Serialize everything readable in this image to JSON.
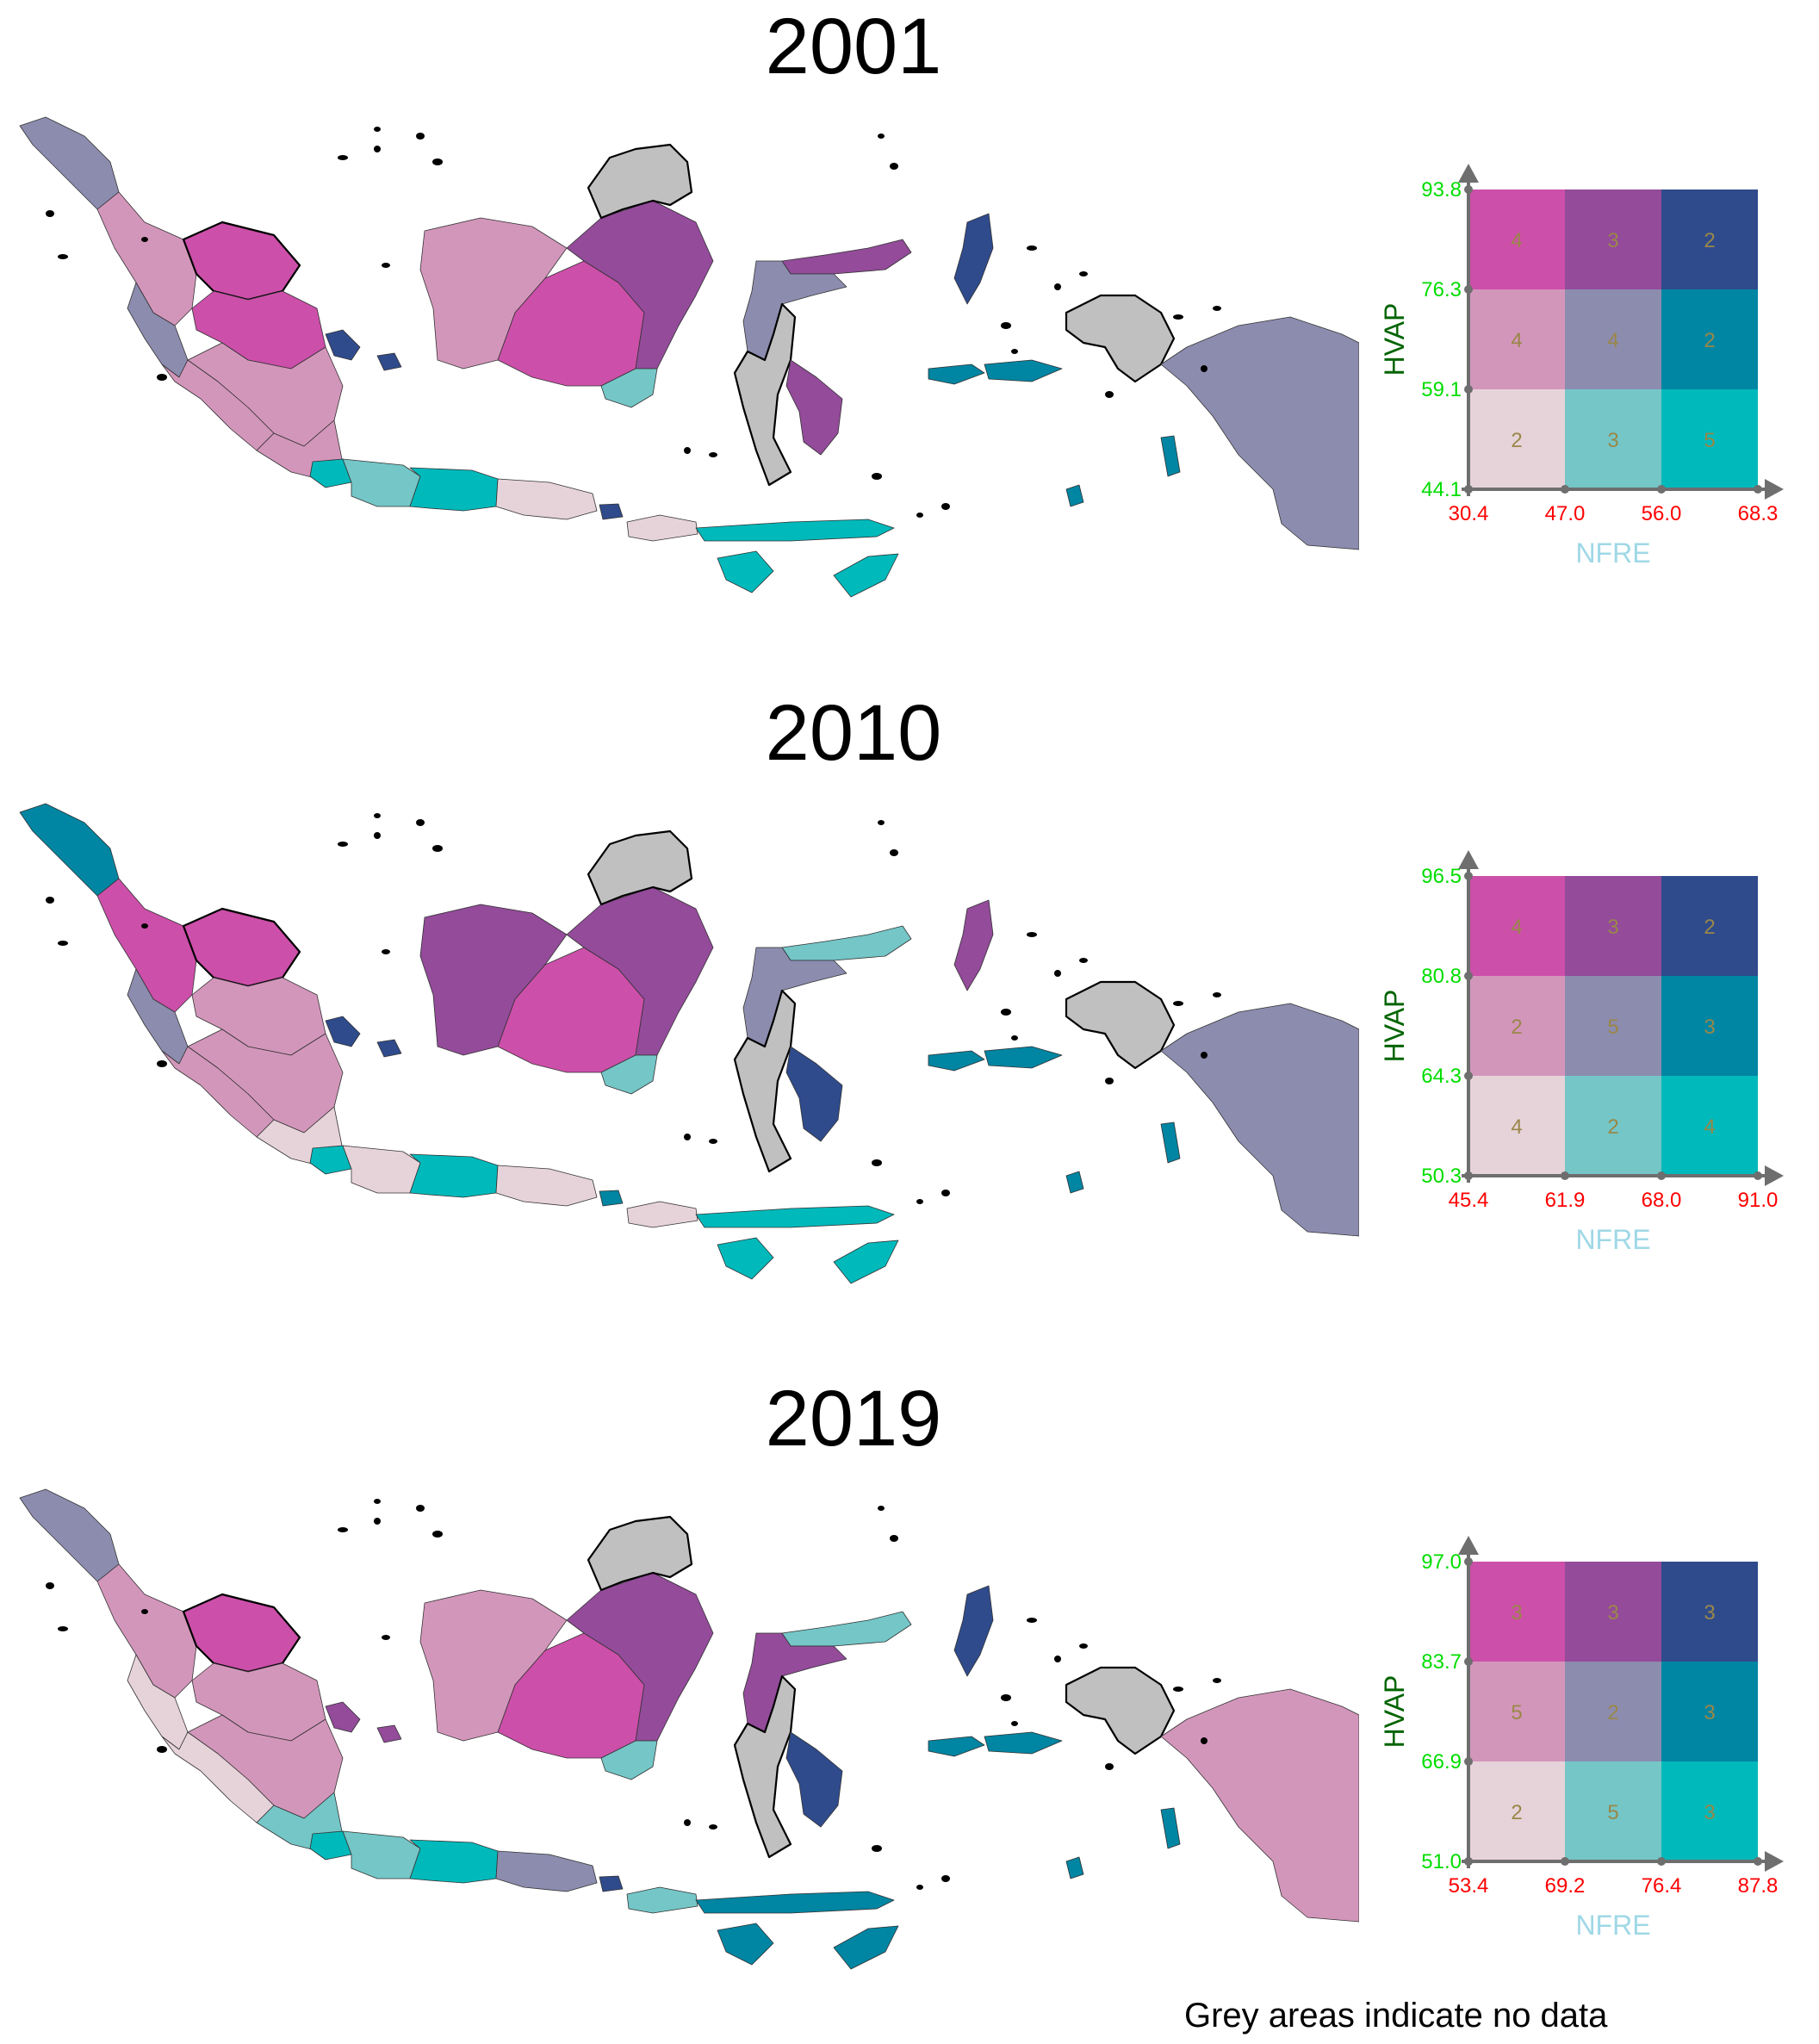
{
  "colors": {
    "no_data": "#c0c0c0",
    "axis": "#6e6e6e",
    "tick_label": "#ff0000",
    "y_tick_label": "#00dd00",
    "x_axis_title": "#9fd8e6",
    "y_axis_title": "#006400",
    "count_text": "#9a8748",
    "palette": [
      [
        "#e6d3d9",
        "#74c6c7",
        "#00b9bb"
      ],
      [
        "#d396bb",
        "#8c8caf",
        "#0085a2"
      ],
      [
        "#cc4fa9",
        "#934b9a",
        "#2f4b8c"
      ]
    ]
  },
  "legend_axes": {
    "x_title": "NFRE",
    "y_title": "HVAP"
  },
  "panels": [
    {
      "year": "2001",
      "x_ticks": [
        "30.4",
        "47.0",
        "56.0",
        "68.3"
      ],
      "y_ticks": [
        "44.1",
        "59.1",
        "76.3",
        "93.8"
      ],
      "counts": [
        [
          "2",
          "3",
          "5"
        ],
        [
          "4",
          "4",
          "2"
        ],
        [
          "4",
          "3",
          "2"
        ]
      ],
      "regions": {
        "aceh": [
          1,
          1
        ],
        "north_sumatra": [
          1,
          0
        ],
        "west_sumatra": [
          1,
          1
        ],
        "riau": [
          2,
          0
        ],
        "jambi": [
          2,
          0
        ],
        "south_sumatra": [
          1,
          0
        ],
        "bengkulu": [
          1,
          0
        ],
        "lampung": [
          1,
          0
        ],
        "bangka": [
          2,
          2
        ],
        "banten": [
          0,
          2
        ],
        "west_java": [
          0,
          1
        ],
        "central_java": [
          0,
          2
        ],
        "east_java": [
          0,
          0
        ],
        "bali": [
          2,
          2
        ],
        "ntb": [
          0,
          0
        ],
        "ntt": [
          0,
          2
        ],
        "west_kalimantan": [
          1,
          0
        ],
        "central_kalimantan": [
          2,
          0
        ],
        "east_kalimantan": [
          2,
          1
        ],
        "south_kalimantan": [
          0,
          1
        ],
        "north_sulawesi": [
          2,
          1
        ],
        "central_sulawesi": [
          1,
          1
        ],
        "south_sulawesi": "nodata",
        "southeast_sulawesi": [
          2,
          1
        ],
        "north_maluku": [
          2,
          2
        ],
        "maluku": [
          1,
          2
        ],
        "papua": [
          1,
          1
        ],
        "west_papua": "nodata"
      }
    },
    {
      "year": "2010",
      "x_ticks": [
        "45.4",
        "61.9",
        "68.0",
        "91.0"
      ],
      "y_ticks": [
        "50.3",
        "64.3",
        "80.8",
        "96.5"
      ],
      "counts": [
        [
          "4",
          "2",
          "4"
        ],
        [
          "2",
          "5",
          "3"
        ],
        [
          "4",
          "3",
          "2"
        ]
      ],
      "regions": {
        "aceh": [
          1,
          2
        ],
        "north_sumatra": [
          2,
          0
        ],
        "west_sumatra": [
          1,
          1
        ],
        "riau": [
          2,
          0
        ],
        "jambi": [
          1,
          0
        ],
        "south_sumatra": [
          1,
          0
        ],
        "bengkulu": [
          1,
          0
        ],
        "lampung": [
          0,
          0
        ],
        "bangka": [
          2,
          2
        ],
        "banten": [
          0,
          2
        ],
        "west_java": [
          0,
          0
        ],
        "central_java": [
          0,
          2
        ],
        "east_java": [
          0,
          0
        ],
        "bali": [
          1,
          2
        ],
        "ntb": [
          0,
          0
        ],
        "ntt": [
          0,
          2
        ],
        "west_kalimantan": [
          2,
          1
        ],
        "central_kalimantan": [
          2,
          0
        ],
        "east_kalimantan": [
          2,
          1
        ],
        "south_kalimantan": [
          0,
          1
        ],
        "north_sulawesi": [
          0,
          1
        ],
        "central_sulawesi": [
          1,
          1
        ],
        "south_sulawesi": "nodata",
        "southeast_sulawesi": [
          2,
          2
        ],
        "north_maluku": [
          2,
          1
        ],
        "maluku": [
          1,
          2
        ],
        "papua": [
          1,
          1
        ],
        "west_papua": "nodata"
      }
    },
    {
      "year": "2019",
      "x_ticks": [
        "53.4",
        "69.2",
        "76.4",
        "87.8"
      ],
      "y_ticks": [
        "51.0",
        "66.9",
        "83.7",
        "97.0"
      ],
      "counts": [
        [
          "2",
          "5",
          "3"
        ],
        [
          "5",
          "2",
          "3"
        ],
        [
          "3",
          "3",
          "3"
        ]
      ],
      "regions": {
        "aceh": [
          1,
          1
        ],
        "north_sumatra": [
          1,
          0
        ],
        "west_sumatra": [
          0,
          0
        ],
        "riau": [
          2,
          0
        ],
        "jambi": [
          1,
          0
        ],
        "south_sumatra": [
          1,
          0
        ],
        "bengkulu": [
          0,
          0
        ],
        "lampung": [
          0,
          1
        ],
        "bangka": [
          2,
          1
        ],
        "banten": [
          0,
          2
        ],
        "west_java": [
          0,
          1
        ],
        "central_java": [
          0,
          2
        ],
        "east_java": [
          1,
          1
        ],
        "bali": [
          2,
          2
        ],
        "ntb": [
          0,
          1
        ],
        "ntt": [
          1,
          2
        ],
        "west_kalimantan": [
          1,
          0
        ],
        "central_kalimantan": [
          2,
          0
        ],
        "east_kalimantan": [
          2,
          1
        ],
        "south_kalimantan": [
          0,
          1
        ],
        "north_sulawesi": [
          0,
          1
        ],
        "central_sulawesi": [
          2,
          1
        ],
        "south_sulawesi": "nodata",
        "southeast_sulawesi": [
          2,
          2
        ],
        "north_maluku": [
          2,
          2
        ],
        "maluku": [
          1,
          2
        ],
        "papua": [
          1,
          0
        ],
        "west_papua": "nodata"
      }
    }
  ],
  "footnote": "Grey areas indicate no data"
}
